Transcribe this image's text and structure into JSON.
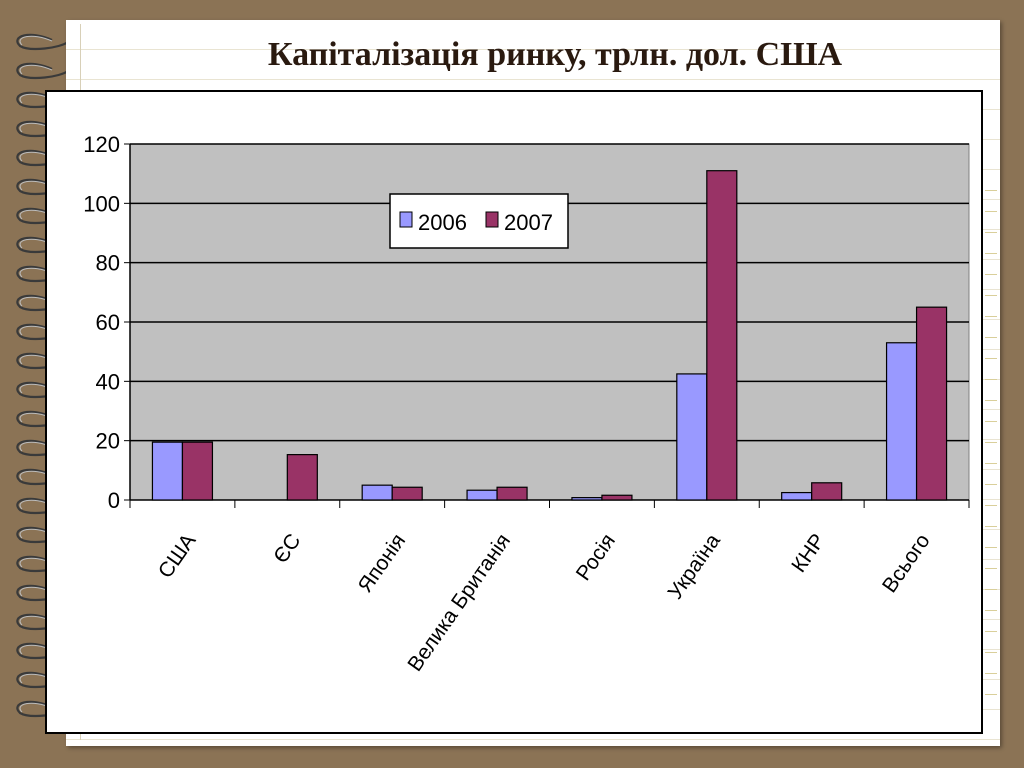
{
  "slide": {
    "title": "Капіталізація ринку, трлн. дол. США"
  },
  "colors": {
    "background": "#8b7355",
    "plot_area": "#c0c0c0",
    "series_2006": "#9999ff",
    "series_2007": "#993366"
  },
  "chart_data": {
    "type": "bar",
    "title": "Капіталізація ринку, трлн. дол. США",
    "xlabel": "",
    "ylabel": "",
    "categories": [
      "США",
      "ЄС",
      "Японія",
      "Велика Британія",
      "Росія",
      "Україна",
      "КНР",
      "Всього"
    ],
    "series": [
      {
        "name": "2006",
        "values": [
          19.5,
          0,
          5,
          3.3,
          0.8,
          42.5,
          2.5,
          53
        ]
      },
      {
        "name": "2007",
        "values": [
          19.5,
          15.3,
          4.3,
          4.3,
          1.6,
          111,
          5.8,
          65
        ]
      }
    ],
    "ylim": [
      0,
      120
    ],
    "yticks": [
      0,
      20,
      40,
      60,
      80,
      100,
      120
    ],
    "grid": true,
    "legend_position": "top-center"
  }
}
